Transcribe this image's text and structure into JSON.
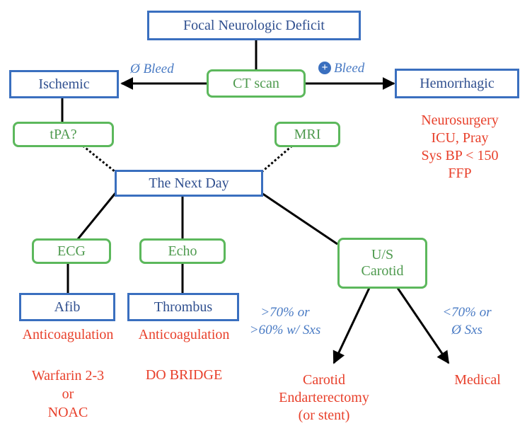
{
  "nodes": {
    "focal": "Focal Neurologic Deficit",
    "ct": "CT scan",
    "ischemic": "Ischemic",
    "hemorrhagic": "Hemorrhagic",
    "tpa": "tPA?",
    "mri": "MRI",
    "nextday": "The Next Day",
    "ecg": "ECG",
    "echo": "Echo",
    "us_line1": "U/S",
    "us_line2": "Carotid",
    "afib": "Afib",
    "thrombus": "Thrombus"
  },
  "edge_labels": {
    "no_bleed": "Ø Bleed",
    "bleed": "Bleed",
    "bleed_symbol": "+",
    "left_branch_line1": ">70%  or",
    "left_branch_line2": ">60% w/ Sxs",
    "right_branch_line1": "<70% or",
    "right_branch_line2": "Ø Sxs"
  },
  "notes": {
    "hemorrhagic": [
      "Neurosurgery",
      "ICU, Pray",
      "Sys BP < 150",
      "FFP"
    ],
    "afib_anticoag": "Anticoagulation",
    "afib_options": [
      "Warfarin 2-3",
      "or",
      "NOAC"
    ],
    "thrombus_anticoag": "Anticoagulation",
    "thrombus_note": "DO BRIDGE",
    "carotid": [
      "Carotid",
      "Endarterectomy",
      "(or stent)"
    ],
    "medical": "Medical"
  },
  "colors": {
    "blue_box": "#3a6fbf",
    "green_box": "#5cb85c",
    "red_text": "#e8402b",
    "label_text": "#4a7bc4"
  }
}
